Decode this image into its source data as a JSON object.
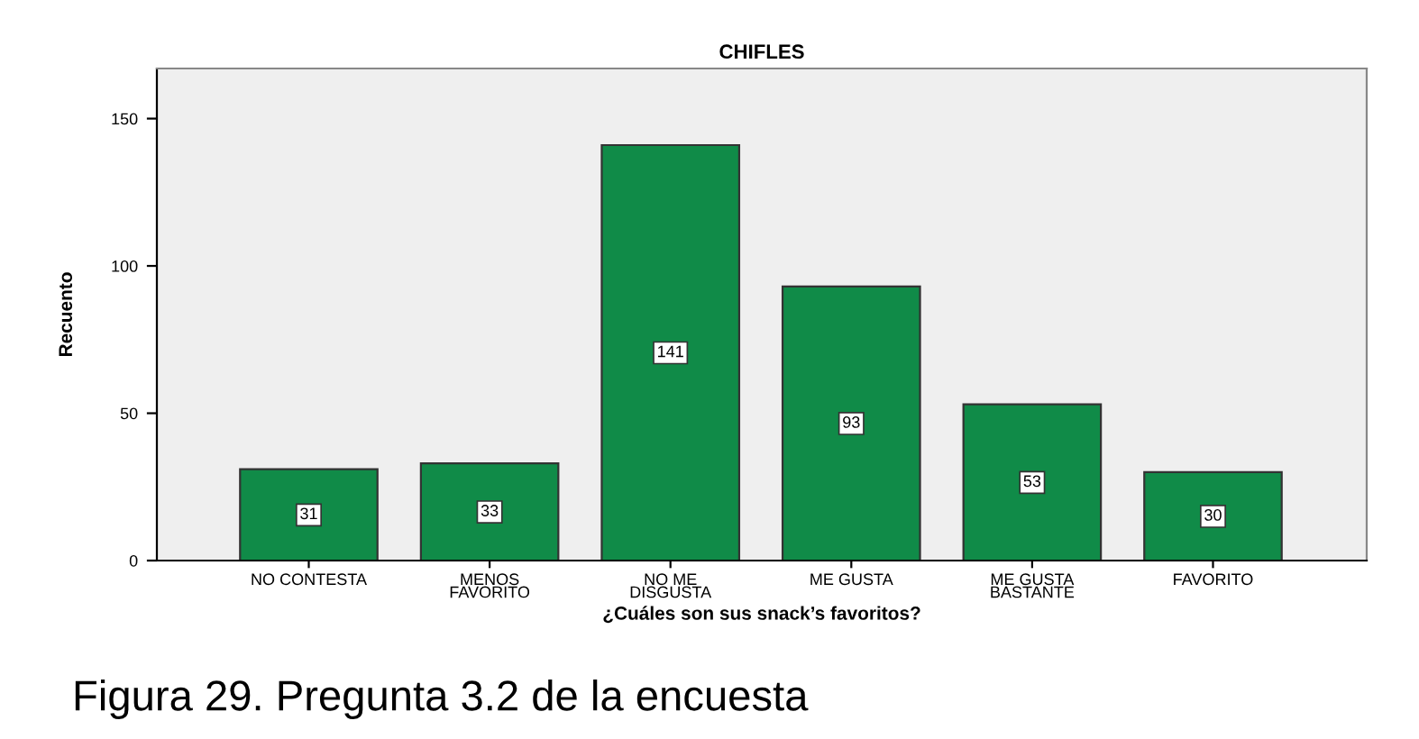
{
  "chart_data": {
    "type": "bar",
    "title": "CHIFLES",
    "categories": [
      "NO CONTESTA",
      "MENOS\nFAVORITO",
      "NO ME\nDISGUSTA",
      "ME GUSTA",
      "ME GUSTA\nBASTANTE",
      "FAVORITO"
    ],
    "values": [
      31,
      33,
      141,
      93,
      53,
      30
    ],
    "color": "#108b48",
    "xlabel": "¿Cuáles son sus snack’s favoritos?",
    "ylabel": "Recuento",
    "ylim": [
      0,
      167
    ],
    "yticks": [
      0,
      50,
      100,
      150
    ],
    "grid": false,
    "data_labels": true,
    "annotations": [
      "Figura 29. Pregunta 3.2 de la encuesta"
    ]
  }
}
